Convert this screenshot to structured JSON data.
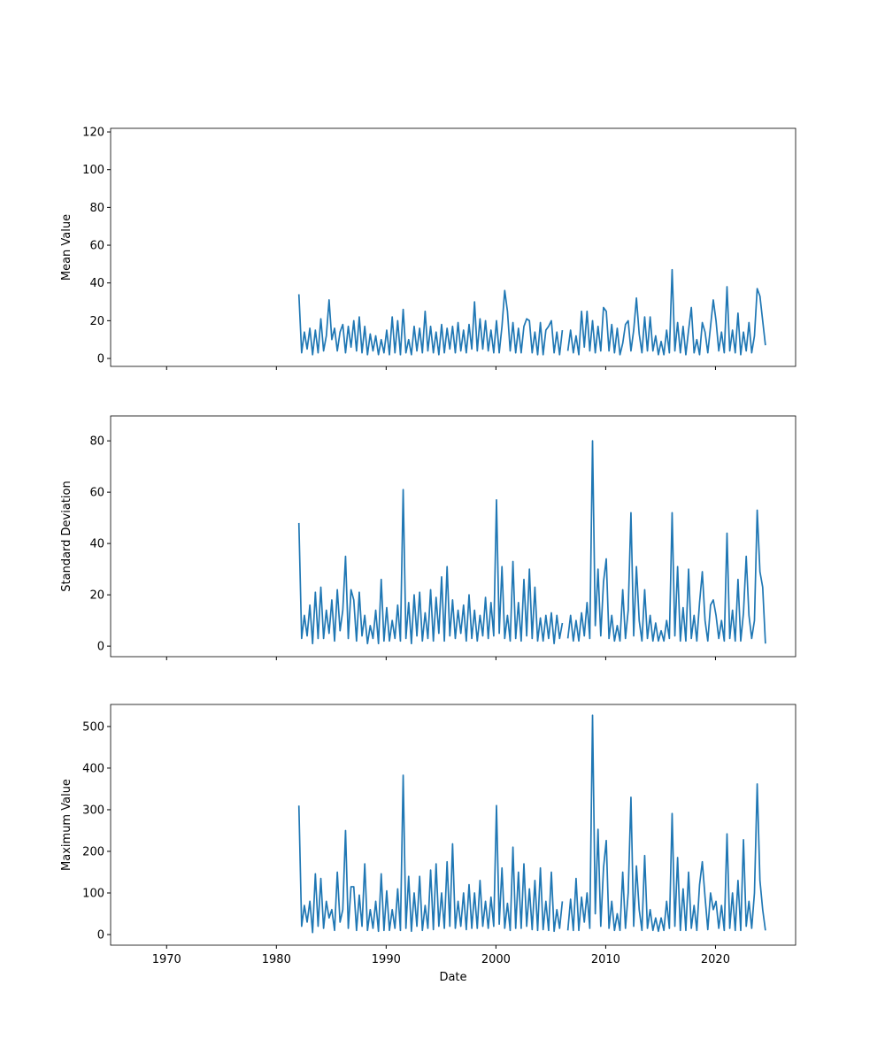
{
  "chart_data": {
    "type": "line",
    "xlabel": "Date",
    "xlim": [
      1964.9,
      2027.3
    ],
    "xticks": [
      1970,
      1980,
      1990,
      2000,
      2010,
      2020
    ],
    "x": [
      1982.05,
      1982.3,
      1982.55,
      1982.8,
      1983.05,
      1983.3,
      1983.55,
      1983.8,
      1984.05,
      1984.3,
      1984.55,
      1984.8,
      1985.05,
      1985.3,
      1985.55,
      1985.8,
      1986.05,
      1986.3,
      1986.55,
      1986.8,
      1987.05,
      1987.3,
      1987.55,
      1987.8,
      1988.05,
      1988.3,
      1988.55,
      1988.8,
      1989.05,
      1989.3,
      1989.55,
      1989.8,
      1990.05,
      1990.3,
      1990.55,
      1990.8,
      1991.05,
      1991.3,
      1991.55,
      1991.8,
      1992.05,
      1992.3,
      1992.55,
      1992.8,
      1993.05,
      1993.3,
      1993.55,
      1993.8,
      1994.05,
      1994.3,
      1994.55,
      1994.8,
      1995.05,
      1995.3,
      1995.55,
      1995.8,
      1996.05,
      1996.3,
      1996.55,
      1996.8,
      1997.05,
      1997.3,
      1997.55,
      1997.8,
      1998.05,
      1998.3,
      1998.55,
      1998.8,
      1999.05,
      1999.3,
      1999.55,
      1999.8,
      2000.05,
      2000.3,
      2000.55,
      2000.8,
      2001.05,
      2001.3,
      2001.55,
      2001.8,
      2002.05,
      2002.3,
      2002.55,
      2002.8,
      2003.05,
      2003.3,
      2003.55,
      2003.8,
      2004.05,
      2004.3,
      2004.55,
      2004.8,
      2005.05,
      2005.3,
      2005.55,
      2005.8,
      2006.05,
      2006.3,
      2006.55,
      2006.8,
      2007.05,
      2007.3,
      2007.55,
      2007.8,
      2008.05,
      2008.3,
      2008.55,
      2008.8,
      2009.05,
      2009.3,
      2009.55,
      2009.8,
      2010.05,
      2010.3,
      2010.55,
      2010.8,
      2011.05,
      2011.3,
      2011.55,
      2011.8,
      2012.05,
      2012.3,
      2012.55,
      2012.8,
      2013.05,
      2013.3,
      2013.55,
      2013.8,
      2014.05,
      2014.3,
      2014.55,
      2014.8,
      2015.05,
      2015.3,
      2015.55,
      2015.8,
      2016.05,
      2016.3,
      2016.55,
      2016.8,
      2017.05,
      2017.3,
      2017.55,
      2017.8,
      2018.05,
      2018.3,
      2018.55,
      2018.8,
      2019.05,
      2019.3,
      2019.55,
      2019.8,
      2020.05,
      2020.3,
      2020.55,
      2020.8,
      2021.05,
      2021.3,
      2021.55,
      2021.8,
      2022.05,
      2022.3,
      2022.55,
      2022.8,
      2023.05,
      2023.3,
      2023.55,
      2023.8,
      2024.05,
      2024.3,
      2024.55
    ],
    "series": [
      {
        "name": "Mean Value",
        "color": "#1f77b4",
        "ylim": [
          -4.2,
          121.9
        ],
        "yticks": [
          0,
          20,
          40,
          60,
          80,
          100,
          120
        ],
        "values": [
          34,
          3,
          14,
          5,
          16,
          2,
          15,
          3,
          21,
          4,
          12,
          31,
          10,
          16,
          4,
          14,
          18,
          3,
          17,
          6,
          20,
          4,
          22,
          3,
          17,
          2,
          13,
          4,
          12,
          2,
          10,
          3,
          15,
          2,
          22,
          3,
          20,
          2,
          26,
          3,
          10,
          2,
          17,
          4,
          16,
          3,
          25,
          4,
          17,
          3,
          14,
          2,
          18,
          3,
          16,
          5,
          17,
          3,
          19,
          4,
          15,
          3,
          18,
          5,
          30,
          4,
          21,
          5,
          20,
          4,
          15,
          3,
          20,
          3,
          17,
          36,
          25,
          4,
          19,
          3,
          16,
          3,
          17,
          21,
          20,
          3,
          14,
          2,
          19,
          2,
          15,
          17,
          20,
          3,
          14,
          2,
          15,
          null,
          4,
          15,
          3,
          12,
          2,
          25,
          6,
          25,
          4,
          20,
          3,
          17,
          4,
          27,
          25,
          4,
          18,
          3,
          16,
          2,
          8,
          18,
          20,
          4,
          15,
          32,
          13,
          3,
          22,
          4,
          22,
          4,
          12,
          2,
          9,
          2,
          15,
          3,
          47,
          4,
          19,
          3,
          17,
          2,
          15,
          27,
          3,
          10,
          2,
          19,
          14,
          3,
          17,
          31,
          20,
          4,
          14,
          3,
          38,
          4,
          15,
          3,
          24,
          2,
          14,
          4,
          19,
          3,
          12,
          37,
          33,
          20,
          7
        ]
      },
      {
        "name": "Standard Deviation",
        "color": "#1f77b4",
        "ylim": [
          -4.1,
          89.7
        ],
        "yticks": [
          0,
          20,
          40,
          60,
          80
        ],
        "values": [
          48,
          3,
          12,
          4,
          16,
          1,
          21,
          3,
          23,
          3,
          14,
          5,
          18,
          2,
          22,
          6,
          14,
          35,
          3,
          22,
          18,
          2,
          21,
          4,
          12,
          1,
          8,
          3,
          14,
          1,
          26,
          2,
          15,
          2,
          10,
          3,
          16,
          2,
          61,
          3,
          17,
          1,
          20,
          4,
          21,
          2,
          13,
          3,
          22,
          2,
          19,
          5,
          27,
          2,
          31,
          4,
          18,
          3,
          14,
          5,
          16,
          2,
          20,
          3,
          14,
          2,
          12,
          4,
          19,
          3,
          17,
          4,
          57,
          5,
          31,
          3,
          12,
          2,
          33,
          3,
          17,
          2,
          26,
          4,
          30,
          3,
          23,
          2,
          11,
          2,
          12,
          3,
          13,
          1,
          12,
          3,
          9,
          null,
          3,
          12,
          2,
          10,
          2,
          13,
          4,
          17,
          3,
          80,
          8,
          30,
          4,
          25,
          34,
          3,
          12,
          2,
          8,
          2,
          22,
          3,
          14,
          52,
          4,
          31,
          10,
          2,
          22,
          3,
          12,
          2,
          9,
          2,
          6,
          2,
          10,
          3,
          52,
          4,
          31,
          2,
          15,
          2,
          30,
          3,
          12,
          2,
          17,
          29,
          10,
          2,
          16,
          18,
          12,
          3,
          10,
          2,
          44,
          3,
          14,
          2,
          26,
          2,
          13,
          35,
          12,
          3,
          10,
          53,
          29,
          23,
          1
        ]
      },
      {
        "name": "Maximum Value",
        "color": "#1f77b4",
        "ylim": [
          -25.5,
          553
        ],
        "yticks": [
          0,
          100,
          200,
          300,
          400,
          500
        ],
        "values": [
          310,
          20,
          70,
          30,
          80,
          5,
          146,
          20,
          135,
          15,
          80,
          40,
          60,
          10,
          150,
          30,
          60,
          250,
          15,
          115,
          115,
          10,
          95,
          20,
          170,
          10,
          60,
          15,
          80,
          8,
          146,
          10,
          105,
          10,
          60,
          15,
          110,
          10,
          383,
          15,
          140,
          8,
          100,
          20,
          140,
          10,
          70,
          15,
          155,
          12,
          170,
          20,
          100,
          15,
          175,
          20,
          218,
          15,
          80,
          20,
          100,
          12,
          120,
          15,
          100,
          15,
          130,
          20,
          80,
          15,
          90,
          20,
          310,
          25,
          160,
          15,
          75,
          10,
          210,
          15,
          150,
          15,
          170,
          20,
          110,
          12,
          130,
          10,
          160,
          12,
          80,
          10,
          150,
          8,
          60,
          15,
          80,
          null,
          10,
          85,
          10,
          135,
          10,
          90,
          30,
          100,
          15,
          527,
          50,
          253,
          20,
          160,
          226,
          15,
          80,
          10,
          50,
          10,
          150,
          15,
          100,
          330,
          20,
          165,
          60,
          10,
          190,
          15,
          60,
          10,
          40,
          8,
          40,
          10,
          80,
          15,
          291,
          20,
          185,
          10,
          110,
          10,
          150,
          15,
          70,
          10,
          120,
          175,
          90,
          12,
          100,
          60,
          80,
          15,
          70,
          10,
          242,
          15,
          100,
          10,
          130,
          10,
          228,
          20,
          80,
          15,
          100,
          362,
          130,
          60,
          10
        ]
      }
    ]
  }
}
